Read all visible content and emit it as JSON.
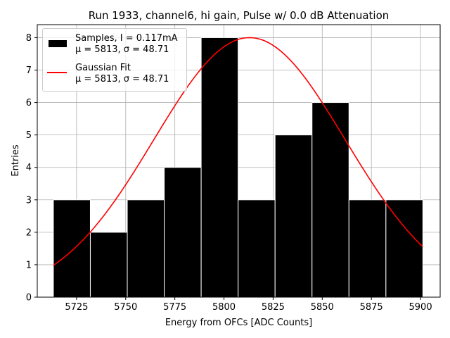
{
  "chart_data": {
    "type": "bar",
    "title": "Run 1933, channel6, hi gain, Pulse w/ 0.0 dB Attenuation",
    "xlabel": "Energy from OFCs [ADC Counts]",
    "ylabel": "Entries",
    "xlim": [
      5705,
      5910
    ],
    "ylim": [
      0,
      8.4
    ],
    "xticks": [
      5725,
      5750,
      5775,
      5800,
      5825,
      5850,
      5875,
      5900
    ],
    "yticks": [
      0,
      1,
      2,
      3,
      4,
      5,
      6,
      7,
      8
    ],
    "grid": true,
    "legend_position": "top-left",
    "histogram": {
      "name": "Samples",
      "bin_edges": [
        5713.2,
        5732.0,
        5750.8,
        5769.6,
        5788.4,
        5807.2,
        5826.0,
        5844.8,
        5863.6,
        5882.4,
        5901.2
      ],
      "counts": [
        3,
        2,
        3,
        4,
        8,
        3,
        5,
        6,
        3,
        3
      ],
      "color": "#000000"
    },
    "fit": {
      "name": "Gaussian Fit",
      "mu": 5813,
      "sigma": 48.71,
      "amplitude": 8.0,
      "x_range": [
        5713.2,
        5901.2
      ],
      "color": "#ff0000"
    },
    "legend": [
      {
        "kind": "bar",
        "line1": "Samples, I = 0.117mA",
        "line2": "μ = 5813, σ = 48.71"
      },
      {
        "kind": "line",
        "line1": "Gaussian Fit",
        "line2": "μ = 5813, σ = 48.71"
      }
    ]
  }
}
